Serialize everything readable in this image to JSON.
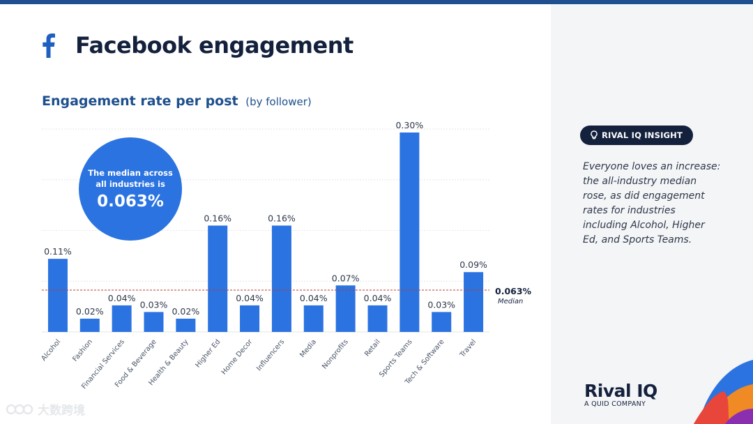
{
  "header": {
    "title": "Facebook engagement",
    "icon": "facebook-icon"
  },
  "chart_data": {
    "type": "bar",
    "title": "Engagement rate per post",
    "subtitle": "(by follower)",
    "categories": [
      "Alcohol",
      "Fashion",
      "Financial Services",
      "Food & Beverage",
      "Health & Beauty",
      "Higher Ed",
      "Home Decor",
      "Influencers",
      "Media",
      "Nonprofits",
      "Retail",
      "Sports Teams",
      "Tech & Software",
      "Travel"
    ],
    "values": [
      0.11,
      0.02,
      0.04,
      0.03,
      0.02,
      0.16,
      0.04,
      0.16,
      0.04,
      0.07,
      0.04,
      0.3,
      0.03,
      0.09
    ],
    "data_labels": [
      "0.11%",
      "0.02%",
      "0.04%",
      "0.03%",
      "0.02%",
      "0.16%",
      "0.04%",
      "0.16%",
      "0.04%",
      "0.07%",
      "0.04%",
      "0.30%",
      "0.03%",
      "0.09%"
    ],
    "unit": "%",
    "ylim": [
      0,
      0.3
    ],
    "grid": true,
    "median": {
      "value": 0.063,
      "label": "0.063%",
      "caption": "Median"
    },
    "bar_color": "#2b73e0",
    "median_color": "#c0392b"
  },
  "callout": {
    "line1": "The median across",
    "line2": "all industries is",
    "value": "0.063%"
  },
  "insight": {
    "badge": "RIVAL IQ INSIGHT",
    "badge_icon": "lightbulb-icon",
    "text": "Everyone loves an increase: the all-industry median rose, as did engagement rates for industries including Alcohol, Higher Ed, and Sports Teams."
  },
  "brand": {
    "name": "Rival IQ",
    "tagline": "A QUID COMPANY"
  },
  "watermark": {
    "text": "大数跨境"
  },
  "colors": {
    "navy": "#14213d",
    "accent": "#1d4f8c",
    "bar": "#2b73e0"
  }
}
